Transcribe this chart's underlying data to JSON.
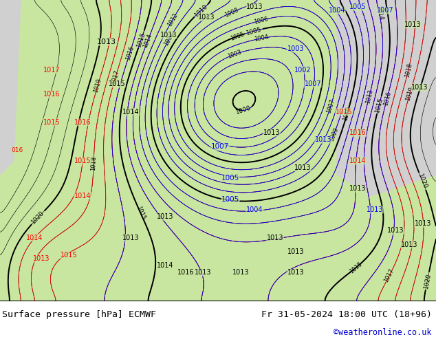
{
  "title_left": "Surface pressure [hPa] ECMWF",
  "title_right": "Fr 31-05-2024 18:00 UTC (18+96)",
  "credit": "©weatheronline.co.uk",
  "credit_color": "#0000cc",
  "land_color": "#c8e6a0",
  "gray_color": "#d0d0d0",
  "footer_bg": "#ffffff",
  "footer_text_color": "#000000",
  "fig_width": 6.34,
  "fig_height": 4.9,
  "dpi": 100
}
